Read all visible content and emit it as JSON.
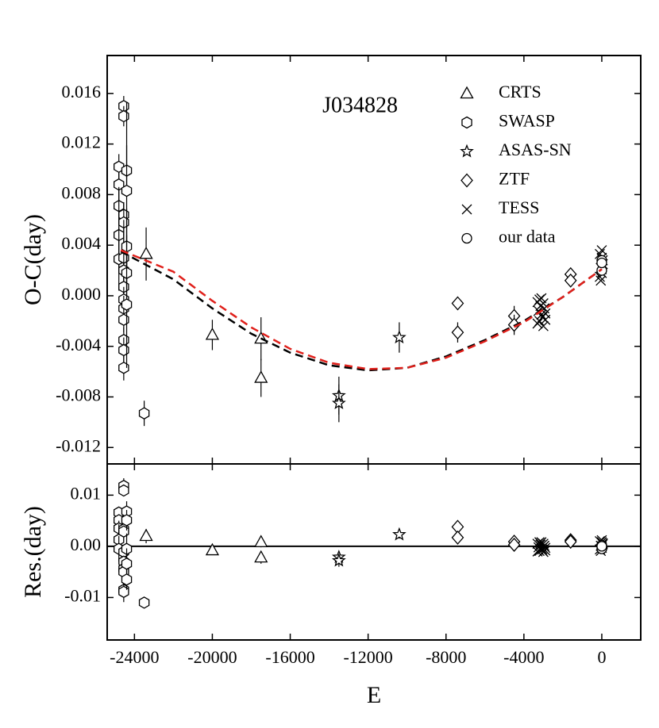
{
  "chart_data": [
    {
      "type": "scatter",
      "annotation": "J034828",
      "ylabel": "O-C(day)",
      "xlim": [
        -25400,
        2000
      ],
      "xticks": [
        -24000,
        -20000,
        -16000,
        -12000,
        -8000,
        -4000,
        0
      ],
      "xtick_labels": false,
      "ylim": [
        -0.0133,
        0.019
      ],
      "yticks": [
        0.016,
        0.012,
        0.008,
        0.004,
        {
          "value": 0,
          "label": "0.000"
        },
        -0.004,
        -0.008,
        -0.012
      ],
      "legend": "upper right",
      "series": [
        {
          "name": "CRTS",
          "marker": "triangle",
          "color": "#000000",
          "x": [
            -23400,
            -20000,
            -17500,
            -17500
          ],
          "values": [
            0.0033,
            -0.0031,
            -0.0034,
            -0.0065
          ],
          "errors": [
            0.0021,
            0.0012,
            0.0017,
            0.0015
          ]
        },
        {
          "name": "SWASP",
          "marker": "hexagon",
          "color": "#000000",
          "x": [
            -24800,
            -24800,
            -24800,
            -24800,
            -24800,
            -24550,
            -24550,
            -24550,
            -24550,
            -24550,
            -24550,
            -24550,
            -24550,
            -24550,
            -24550,
            -24550,
            -24550,
            -24550,
            -24400,
            -24400,
            -24400,
            -24400,
            -24400,
            -23500
          ],
          "values": [
            0.0102,
            0.0088,
            0.0071,
            0.0048,
            0.0029,
            0.015,
            0.0142,
            0.0064,
            0.0058,
            0.003,
            0.002,
            0.0007,
            -0.0003,
            -0.001,
            -0.0019,
            -0.0035,
            -0.0043,
            -0.0057,
            0.0099,
            0.0083,
            0.0039,
            0.0018,
            -0.0007,
            -0.0093
          ],
          "errors": [
            0.001,
            0.001,
            0.0015,
            0.003,
            0.0025,
            0.0008,
            0.0008,
            0.001,
            0.001,
            0.003,
            0.0025,
            0.001,
            0.001,
            0.001,
            0.001,
            0.001,
            0.001,
            0.001,
            0.002,
            0.007,
            0.003,
            0.003,
            0.005,
            0.001
          ]
        },
        {
          "name": "ASAS-SN",
          "marker": "star",
          "color": "#000000",
          "x": [
            -13500,
            -13500,
            -10400
          ],
          "values": [
            -0.0079,
            -0.0085,
            -0.0033
          ],
          "errors": [
            0.0015,
            0.0015,
            0.0012
          ]
        },
        {
          "name": "ZTF",
          "marker": "diamond",
          "color": "#000000",
          "x": [
            -7400,
            -7400,
            -4500,
            -4500,
            -1600,
            -1600
          ],
          "values": [
            -0.0006,
            -0.0029,
            -0.0016,
            -0.0023,
            0.0017,
            0.0012
          ],
          "errors": [
            0.0005,
            0.0008,
            0.0008,
            0.0008,
            0.0004,
            0.0004
          ]
        },
        {
          "name": "TESS",
          "marker": "x",
          "color": "#000000",
          "x": [
            -3300,
            -3250,
            -3200,
            -3150,
            -3100,
            -3050,
            -3000,
            -2950,
            -2900,
            -3300,
            -3200,
            -3100,
            -3000,
            -2900,
            -100,
            -50,
            0,
            0,
            50,
            -100,
            0,
            50,
            0,
            -50
          ],
          "values": [
            -0.0005,
            -0.0012,
            -0.002,
            -0.0008,
            -0.0002,
            -0.0017,
            -0.0024,
            -0.001,
            -0.0014,
            -0.0022,
            -0.0003,
            -0.0015,
            -0.0006,
            -0.0019,
            0.0015,
            0.0022,
            0.003,
            0.0036,
            0.0025,
            0.0033,
            0.0018,
            0.0028,
            0.0021,
            0.0012
          ]
        },
        {
          "name": "our data",
          "marker": "circle",
          "color": "#000000",
          "x": [
            0,
            0,
            0
          ],
          "values": [
            0.0028,
            0.002,
            0.0026
          ]
        },
        {
          "line": "dashed",
          "color": "#000000",
          "x": [
            -24700,
            -22000,
            -20000,
            -18000,
            -16000,
            -14000,
            -12000,
            -10000,
            -8000,
            -6000,
            -4000,
            -2000,
            0
          ],
          "values": [
            0.0035,
            0.0013,
            -0.001,
            -0.003,
            -0.0045,
            -0.0055,
            -0.0059,
            -0.0057,
            -0.0048,
            -0.0035,
            -0.002,
            -0.0001,
            0.0021
          ]
        },
        {
          "line": "dashed",
          "color": "#e0201b",
          "x": [
            -24700,
            -22000,
            -20000,
            -18000,
            -16000,
            -14000,
            -12000,
            -10000,
            -8000,
            -6000,
            -4000,
            -2000,
            0
          ],
          "values": [
            0.0036,
            0.0019,
            -0.0004,
            -0.0025,
            -0.0042,
            -0.0053,
            -0.0058,
            -0.0057,
            -0.0049,
            -0.0036,
            -0.0021,
            -0.0001,
            0.0021
          ]
        }
      ]
    },
    {
      "type": "scatter",
      "ylabel": "Res.(day)",
      "xlabel": "E",
      "xlim": [
        -25400,
        2000
      ],
      "xticks": [
        -24000,
        -20000,
        -16000,
        -12000,
        -8000,
        -4000,
        0
      ],
      "xtick_labels": true,
      "ylim": [
        -0.0183,
        0.0161
      ],
      "yticks": [
        0.01,
        {
          "value": 0,
          "label": "0.00"
        },
        -0.01
      ],
      "hlines": [
        0
      ],
      "series": [
        {
          "marker": "triangle",
          "color": "#000000",
          "x": [
            -23400,
            -20000,
            -17500,
            -17500
          ],
          "values": [
            0.002,
            -0.0008,
            0.0008,
            -0.0022
          ],
          "errors": [
            0.0014,
            0.0008,
            0.001,
            0.0012
          ]
        },
        {
          "marker": "hexagon",
          "color": "#000000",
          "x": [
            -24800,
            -24800,
            -24800,
            -24800,
            -24800,
            -24550,
            -24550,
            -24550,
            -24550,
            -24550,
            -24550,
            -24550,
            -24550,
            -24550,
            -24550,
            -24400,
            -24400,
            -24400,
            -24400,
            -24400,
            -23500
          ],
          "values": [
            0.0066,
            0.0051,
            0.0035,
            0.0013,
            -0.0005,
            0.0118,
            0.0109,
            0.0033,
            0.0029,
            -0.0011,
            -0.003,
            -0.0044,
            -0.005,
            -0.0085,
            -0.0089,
            0.0068,
            0.0051,
            -0.0005,
            -0.0034,
            -0.0065,
            -0.011
          ],
          "errors": [
            0.001,
            0.001,
            0.0015,
            0.003,
            0.0025,
            0.0015,
            0.001,
            0.001,
            0.001,
            0.001,
            0.001,
            0.001,
            0.001,
            0.0015,
            0.002,
            0.002,
            0.002,
            0.003,
            0.003,
            0.002,
            0.0008
          ]
        },
        {
          "marker": "star",
          "color": "#000000",
          "x": [
            -13500,
            -13500,
            -10400
          ],
          "values": [
            -0.0021,
            -0.0028,
            0.0023
          ],
          "errors": [
            0.0012,
            0.0012,
            0.0008
          ]
        },
        {
          "marker": "diamond",
          "color": "#000000",
          "x": [
            -7400,
            -7400,
            -4500,
            -4500,
            -1600,
            -1600
          ],
          "values": [
            0.0038,
            0.0017,
            0.0009,
            0.0003,
            0.0012,
            0.0009
          ],
          "errors": [
            0.0005,
            0.0006,
            0.0006,
            0.0006,
            0.0004,
            0.0004
          ]
        },
        {
          "marker": "x",
          "color": "#000000",
          "x": [
            -3300,
            -3250,
            -3200,
            -3150,
            -3100,
            -3050,
            -3000,
            -2950,
            -2900,
            -3300,
            -3200,
            -3100,
            -3000,
            -2900,
            -100,
            -50,
            0,
            0,
            50,
            -100,
            0,
            50,
            0,
            -50
          ],
          "values": [
            0.0005,
            -0.0002,
            -0.0009,
            0.0003,
            0.0008,
            -0.0006,
            -0.0011,
            0.0001,
            -0.0003,
            -0.001,
            0.0008,
            -0.0004,
            0.0005,
            -0.0008,
            -0.0006,
            0.0001,
            0.0008,
            0.0012,
            0.0004,
            0.001,
            -0.0003,
            0.0006,
            0,
            -0.0009
          ]
        },
        {
          "marker": "circle",
          "color": "#000000",
          "x": [
            0,
            0,
            0
          ],
          "values": [
            0.0002,
            -0.0005,
            0
          ]
        }
      ]
    }
  ]
}
